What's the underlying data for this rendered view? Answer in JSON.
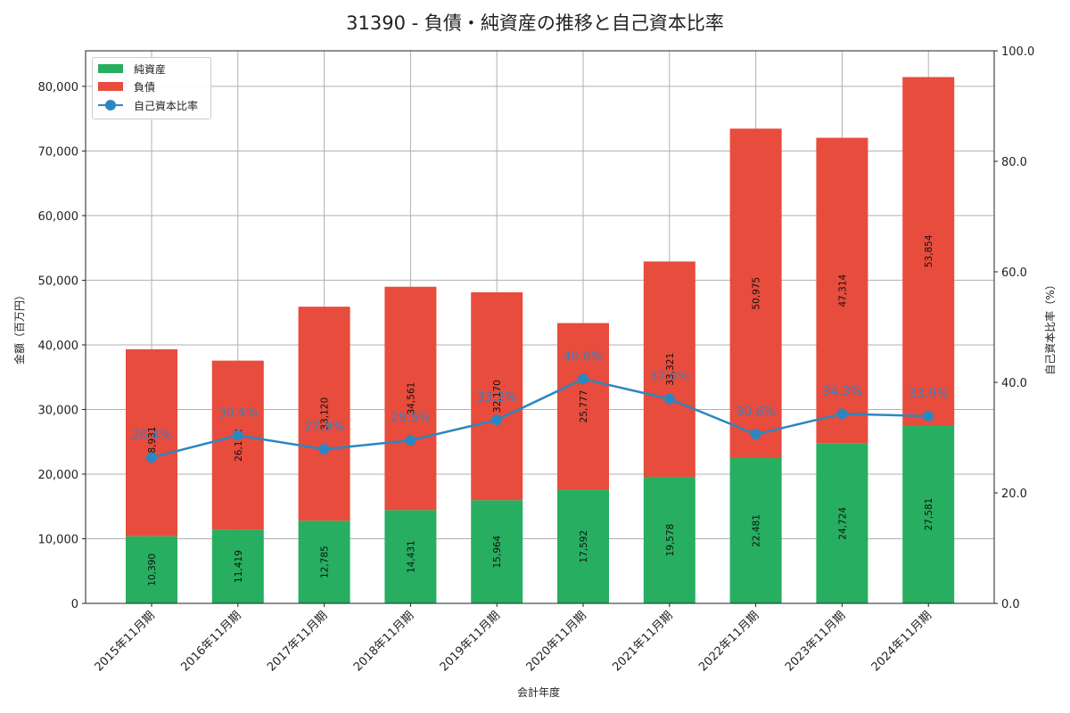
{
  "title": "31390 - 負債・純資産の推移と自己資本比率",
  "legend": {
    "net_assets": "純資産",
    "liabilities": "負債",
    "equity_ratio": "自己資本比率"
  },
  "axes": {
    "xlabel": "会計年度",
    "ylabel_left": "金額（百万円）",
    "ylabel_right": "自己資本比率（%）",
    "left_ticks": [
      "0",
      "10,000",
      "20,000",
      "30,000",
      "40,000",
      "50,000",
      "60,000",
      "70,000",
      "80,000"
    ],
    "right_ticks": [
      "0.0",
      "20.0",
      "40.0",
      "60.0",
      "80.0",
      "100.0"
    ]
  },
  "colors": {
    "net_assets": "#27ae60",
    "liabilities": "#e74c3c",
    "equity_ratio": "#2e86c1"
  },
  "chart_data": {
    "type": "bar",
    "title": "31390 - 負債・純資産の推移と自己資本比率",
    "xlabel": "会計年度",
    "ylabel": "金額（百万円）",
    "ylabel_right": "自己資本比率（%）",
    "ylim": [
      0,
      85500
    ],
    "ylim_right": [
      0,
      100
    ],
    "stacked": true,
    "grid": true,
    "legend_position": "upper left",
    "categories": [
      "2015年11月期",
      "2016年11月期",
      "2017年11月期",
      "2018年11月期",
      "2019年11月期",
      "2020年11月期",
      "2021年11月期",
      "2022年11月期",
      "2023年11月期",
      "2024年11月期"
    ],
    "series": [
      {
        "name": "純資産",
        "type": "bar",
        "values": [
          10390,
          11419,
          12785,
          14431,
          15964,
          17592,
          19578,
          22481,
          24724,
          27581
        ]
      },
      {
        "name": "負債",
        "type": "bar",
        "values": [
          28931,
          26142,
          33120,
          34561,
          32170,
          25777,
          33321,
          50975,
          47314,
          53854
        ]
      },
      {
        "name": "自己資本比率",
        "type": "line",
        "axis": "right",
        "values": [
          26.4,
          30.4,
          27.9,
          29.5,
          33.2,
          40.6,
          37.0,
          30.6,
          34.3,
          33.9
        ]
      }
    ],
    "value_labels": {
      "net_assets": [
        "10,390",
        "11,419",
        "12,785",
        "14,431",
        "15,964",
        "17,592",
        "19,578",
        "22,481",
        "24,724",
        "27,581"
      ],
      "liabilities": [
        "28,931",
        "26,142",
        "33,120",
        "34,561",
        "32,170",
        "25,777",
        "33,321",
        "50,975",
        "47,314",
        "53,854"
      ],
      "ratio": [
        "26.4%",
        "30.4%",
        "27.9%",
        "29.5%",
        "33.2%",
        "40.6%",
        "37.0%",
        "30.6%",
        "34.3%",
        "33.9%"
      ]
    }
  }
}
